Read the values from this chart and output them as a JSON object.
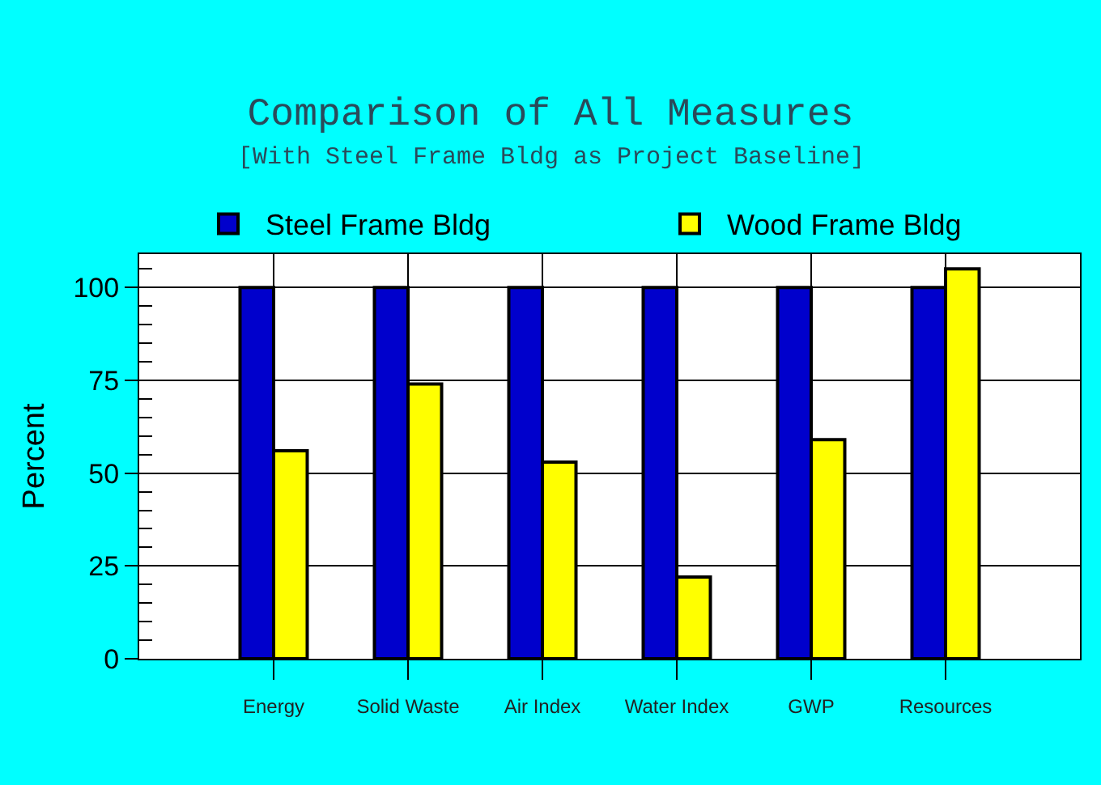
{
  "chart_data": {
    "type": "bar",
    "title": "Comparison of All Measures",
    "subtitle": "[With Steel Frame Bldg as Project Baseline]",
    "ylabel": "Percent",
    "categories": [
      "Energy",
      "Solid Waste",
      "Air Index",
      "Water Index",
      "GWP",
      "Resources"
    ],
    "series": [
      {
        "name": "Steel Frame Bldg",
        "color": "#0000cc",
        "values": [
          100,
          100,
          100,
          100,
          100,
          100
        ]
      },
      {
        "name": "Wood Frame Bldg",
        "color": "#ffff00",
        "values": [
          56,
          74,
          53,
          22,
          59,
          105
        ]
      }
    ],
    "ylim": [
      0,
      109
    ],
    "yticks": [
      0,
      {
        "value": 5,
        "label": null
      },
      {
        "value": 10,
        "label": null
      },
      {
        "value": 15,
        "label": null
      },
      {
        "value": 20,
        "label": null
      },
      25,
      {
        "value": 30,
        "label": null
      },
      {
        "value": 35,
        "label": null
      },
      {
        "value": 40,
        "label": null
      },
      {
        "value": 45,
        "label": null
      },
      50,
      {
        "value": 55,
        "label": null
      },
      {
        "value": 60,
        "label": null
      },
      {
        "value": 65,
        "label": null
      },
      {
        "value": 70,
        "label": null
      },
      75,
      {
        "value": 80,
        "label": null
      },
      {
        "value": 85,
        "label": null
      },
      {
        "value": 90,
        "label": null
      },
      {
        "value": 95,
        "label": null
      },
      100,
      {
        "value": 105,
        "label": null
      }
    ],
    "grid": true,
    "legend": "top"
  }
}
